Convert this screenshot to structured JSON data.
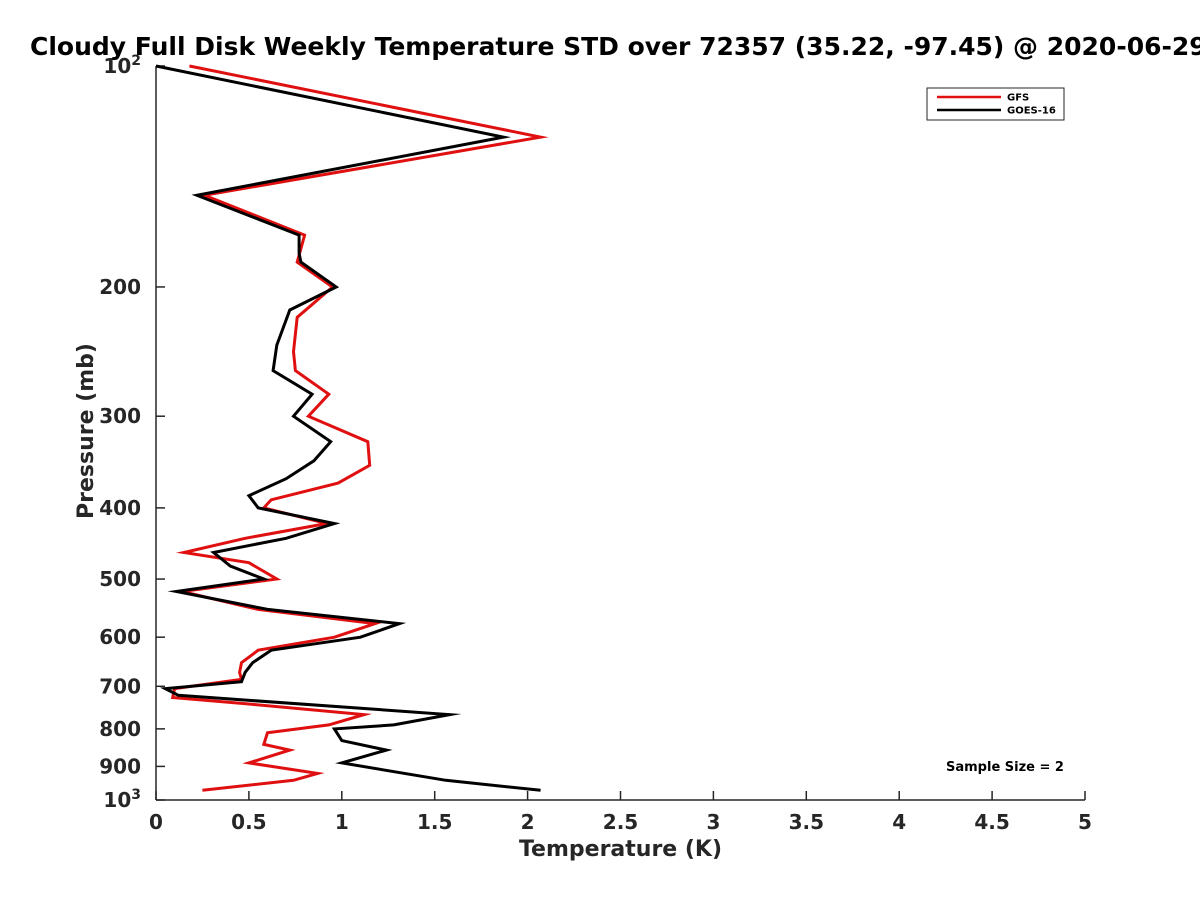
{
  "chart_data": {
    "type": "line",
    "title": "Cloudy Full Disk Weekly Temperature STD over 72357 (35.22, -97.45) @ 2020-06-29",
    "xlabel": "Temperature (K)",
    "ylabel": "Pressure (mb)",
    "xlim": [
      0,
      5
    ],
    "ylim": [
      100,
      1000
    ],
    "y_scale": "log",
    "y_reversed": true,
    "x_ticks": [
      "0",
      "0.5",
      "1",
      "1.5",
      "2",
      "2.5",
      "3",
      "3.5",
      "4",
      "4.5",
      "5"
    ],
    "y_ticks": [
      {
        "value": 100,
        "base": "10",
        "exp": "2"
      },
      {
        "value": 200,
        "label": "200"
      },
      {
        "value": 300,
        "label": "300"
      },
      {
        "value": 400,
        "label": "400"
      },
      {
        "value": 500,
        "label": "500"
      },
      {
        "value": 600,
        "label": "600"
      },
      {
        "value": 700,
        "label": "700"
      },
      {
        "value": 800,
        "label": "800"
      },
      {
        "value": 900,
        "label": "900"
      },
      {
        "value": 1000,
        "base": "10",
        "exp": "3"
      }
    ],
    "grid": false,
    "legend_position": "top-right",
    "annotation": "Sample Size = 2",
    "series": [
      {
        "name": "GFS",
        "color": "#e01010",
        "points": [
          [
            0.18,
            100
          ],
          [
            2.07,
            125
          ],
          [
            0.26,
            150
          ],
          [
            0.8,
            170
          ],
          [
            0.76,
            185
          ],
          [
            0.95,
            200
          ],
          [
            0.76,
            220
          ],
          [
            0.74,
            245
          ],
          [
            0.75,
            260
          ],
          [
            0.93,
            280
          ],
          [
            0.82,
            300
          ],
          [
            1.14,
            325
          ],
          [
            1.15,
            350
          ],
          [
            0.98,
            370
          ],
          [
            0.62,
            390
          ],
          [
            0.58,
            400
          ],
          [
            0.92,
            420
          ],
          [
            0.48,
            440
          ],
          [
            0.15,
            460
          ],
          [
            0.5,
            475
          ],
          [
            0.65,
            500
          ],
          [
            0.14,
            520
          ],
          [
            0.55,
            550
          ],
          [
            1.18,
            575
          ],
          [
            0.96,
            600
          ],
          [
            0.55,
            625
          ],
          [
            0.46,
            650
          ],
          [
            0.45,
            670
          ],
          [
            0.46,
            685
          ],
          [
            0.1,
            705
          ],
          [
            0.09,
            725
          ],
          [
            0.5,
            740
          ],
          [
            1.12,
            765
          ],
          [
            0.93,
            790
          ],
          [
            0.6,
            810
          ],
          [
            0.58,
            840
          ],
          [
            0.72,
            855
          ],
          [
            0.5,
            890
          ],
          [
            0.87,
            920
          ],
          [
            0.74,
            940
          ],
          [
            0.25,
            970
          ]
        ]
      },
      {
        "name": "GOES-16",
        "color": "#000000",
        "points": [
          [
            0.0,
            100
          ],
          [
            1.87,
            125
          ],
          [
            0.22,
            150
          ],
          [
            0.77,
            170
          ],
          [
            0.77,
            180
          ],
          [
            0.78,
            185
          ],
          [
            0.97,
            200
          ],
          [
            0.72,
            215
          ],
          [
            0.65,
            240
          ],
          [
            0.63,
            260
          ],
          [
            0.84,
            280
          ],
          [
            0.74,
            300
          ],
          [
            0.94,
            325
          ],
          [
            0.85,
            345
          ],
          [
            0.7,
            365
          ],
          [
            0.5,
            385
          ],
          [
            0.55,
            400
          ],
          [
            0.96,
            420
          ],
          [
            0.7,
            440
          ],
          [
            0.31,
            460
          ],
          [
            0.4,
            480
          ],
          [
            0.58,
            500
          ],
          [
            0.11,
            520
          ],
          [
            0.6,
            550
          ],
          [
            1.31,
            575
          ],
          [
            1.1,
            600
          ],
          [
            0.62,
            625
          ],
          [
            0.52,
            650
          ],
          [
            0.48,
            670
          ],
          [
            0.46,
            690
          ],
          [
            0.05,
            705
          ],
          [
            0.12,
            720
          ],
          [
            1.58,
            765
          ],
          [
            1.28,
            790
          ],
          [
            0.96,
            800
          ],
          [
            1.0,
            830
          ],
          [
            1.24,
            855
          ],
          [
            1.0,
            890
          ],
          [
            1.56,
            940
          ],
          [
            2.07,
            970
          ]
        ]
      }
    ]
  }
}
